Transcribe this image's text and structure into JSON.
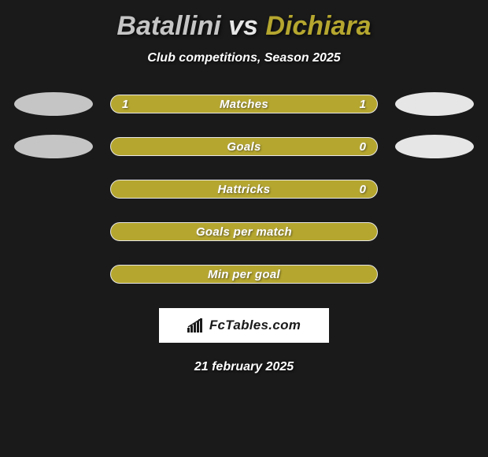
{
  "title": {
    "player1": "Batallini",
    "vs": "vs",
    "player2": "Dichiara",
    "player1_color": "#c5c5c5",
    "player2_color": "#b5a62f"
  },
  "subtitle": "Club competitions, Season 2025",
  "bar_style": {
    "fill_color": "#b5a62f",
    "border_color": "#e6e6e6",
    "border_width": 1
  },
  "ellipse_colors": {
    "left": "#c5c5c5",
    "right": "#e6e6e6"
  },
  "rows": [
    {
      "label": "Matches",
      "left": "1",
      "right": "1",
      "show_ellipses": true
    },
    {
      "label": "Goals",
      "left": "",
      "right": "0",
      "show_ellipses": true
    },
    {
      "label": "Hattricks",
      "left": "",
      "right": "0",
      "show_ellipses": false
    },
    {
      "label": "Goals per match",
      "left": "",
      "right": "",
      "show_ellipses": false
    },
    {
      "label": "Min per goal",
      "left": "",
      "right": "",
      "show_ellipses": false
    }
  ],
  "brand": {
    "text": "FcTables.com",
    "bg_color": "#ffffff",
    "text_color": "#1a1a1a"
  },
  "date": "21 february 2025",
  "background_color": "#1a1a1a"
}
